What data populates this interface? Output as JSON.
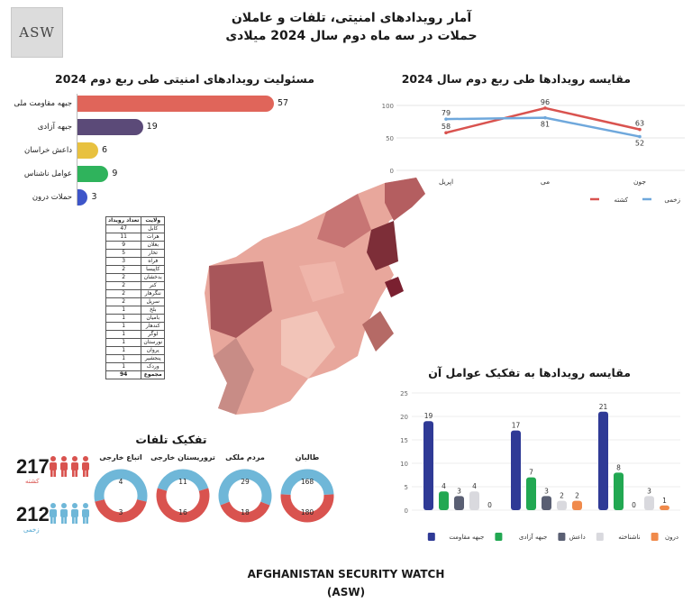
{
  "header": {
    "logo_text": "ASW",
    "title_line1": "آمار رویدادهای امنیتی، تلفات و عاملان",
    "title_line2": "حملات در سه ماه دوم سال 2024 میلادی"
  },
  "colors": {
    "killed": "#d9534f",
    "wounded": "#6fb7d8",
    "resistance": "#2f3a96",
    "freedom": "#22a852",
    "daesh": "#5a5f73",
    "unknown": "#d9d9de",
    "drone": "#f08a4b"
  },
  "responsibility_chart": {
    "title": "مسئولیت رویدادهای امنیتی طی ربع دوم 2024",
    "bars": [
      {
        "label": "جبهه مقاومت ملی",
        "value": 57,
        "color": "#e0655a"
      },
      {
        "label": "جبهه آزادی",
        "value": 19,
        "color": "#5b4a78"
      },
      {
        "label": "داعش خراسان",
        "value": 6,
        "color": "#e8c13f"
      },
      {
        "label": "عوامل ناشناس",
        "value": 9,
        "color": "#2fb35c"
      },
      {
        "label": "حملات درون",
        "value": 3,
        "color": "#3d55c9"
      }
    ]
  },
  "province_table": {
    "headers": [
      "ولایت",
      "تعداد رویداد"
    ],
    "rows": [
      [
        "کابل",
        "47"
      ],
      [
        "هرات",
        "11"
      ],
      [
        "بغلان",
        "9"
      ],
      [
        "تخار",
        "5"
      ],
      [
        "فراه",
        "3"
      ],
      [
        "کاپیسا",
        "2"
      ],
      [
        "بدخشان",
        "2"
      ],
      [
        "کنر",
        "2"
      ],
      [
        "ننگرهار",
        "2"
      ],
      [
        "سرپل",
        "2"
      ],
      [
        "بلخ",
        "1"
      ],
      [
        "بامیان",
        "1"
      ],
      [
        "کندهار",
        "1"
      ],
      [
        "لوگر",
        "1"
      ],
      [
        "نورستان",
        "1"
      ],
      [
        "پروان",
        "1"
      ],
      [
        "پنجشیر",
        "1"
      ],
      [
        "وردک",
        "1"
      ],
      [
        "مجموع",
        "94"
      ]
    ]
  },
  "chart_data": [
    {
      "type": "line",
      "title": "مقایسه رویدادها طی ربع دوم سال 2024",
      "categories": [
        "اپریل",
        "می",
        "جون"
      ],
      "ylim": [
        0,
        100
      ],
      "yticks": [
        0,
        50,
        100
      ],
      "legend": "bottom-right",
      "series": [
        {
          "name": "کشته",
          "values": [
            58,
            96,
            63
          ],
          "color": "#d9534f"
        },
        {
          "name": "زخمی",
          "values": [
            79,
            81,
            52
          ],
          "color": "#6fa8dc"
        }
      ]
    },
    {
      "type": "bar",
      "title": "مقایسه رویدادها به تفکیک عوامل آن",
      "ylim": [
        0,
        25
      ],
      "yticks": [
        0,
        5,
        10,
        15,
        20,
        25
      ],
      "groups": 3,
      "legend": "bottom",
      "series": [
        {
          "name": "جبهه مقاومت",
          "values": [
            19,
            17,
            21
          ],
          "color": "#2f3a96"
        },
        {
          "name": "جبهه آزادی",
          "values": [
            4,
            7,
            8
          ],
          "color": "#22a852"
        },
        {
          "name": "داعش",
          "values": [
            3,
            3,
            0
          ],
          "color": "#5a5f73"
        },
        {
          "name": "ناشناخته",
          "values": [
            4,
            2,
            3
          ],
          "color": "#d9d9de"
        },
        {
          "name": "درون",
          "values": [
            0,
            2,
            1
          ],
          "color": "#f08a4b"
        }
      ]
    },
    {
      "type": "pie",
      "title": "تفکیک تلفات",
      "donuts": [
        {
          "label": "طالبان",
          "wounded": 168,
          "killed": 180
        },
        {
          "label": "مردم ملکی",
          "wounded": 29,
          "killed": 18
        },
        {
          "label": "تروریستان خارجی",
          "wounded": 11,
          "killed": 16
        },
        {
          "label": "اتباع خارجی",
          "wounded": 4,
          "killed": 3
        }
      ]
    }
  ],
  "casualty_totals": {
    "killed_number": "217",
    "killed_label": "کشته",
    "wounded_number": "212",
    "wounded_label": "زخمی"
  },
  "footer": {
    "line1": "AFGHANISTAN SECURITY WATCH",
    "line2": "(ASW)"
  }
}
